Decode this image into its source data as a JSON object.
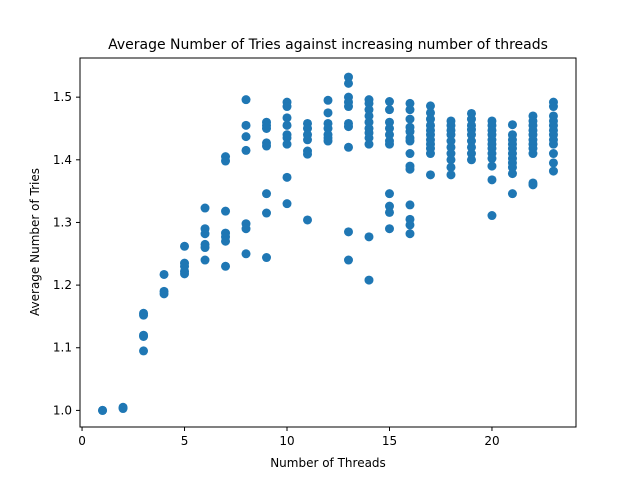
{
  "chart_data": {
    "type": "scatter",
    "title": "Average Number of Tries against increasing number of threads",
    "xlabel": "Number of Threads",
    "ylabel": "Average Number of Tries",
    "xlim": [
      -0.1,
      24.1
    ],
    "ylim": [
      0.9735,
      1.5625
    ],
    "x_ticks": [
      0,
      5,
      10,
      15,
      20
    ],
    "x_tick_labels": [
      "0",
      "5",
      "10",
      "15",
      "20"
    ],
    "y_ticks": [
      1.0,
      1.1,
      1.2,
      1.3,
      1.4,
      1.5
    ],
    "y_tick_labels": [
      "1.0",
      "1.1",
      "1.2",
      "1.3",
      "1.4",
      "1.5"
    ],
    "grid": false,
    "marker_color": "#1f77b4",
    "points": [
      [
        1,
        1.0
      ],
      [
        1,
        1.0
      ],
      [
        2,
        1.005
      ],
      [
        2,
        1.003
      ],
      [
        3,
        1.155
      ],
      [
        3,
        1.152
      ],
      [
        3,
        1.12
      ],
      [
        3,
        1.118
      ],
      [
        3,
        1.095
      ],
      [
        4,
        1.217
      ],
      [
        4,
        1.19
      ],
      [
        4,
        1.186
      ],
      [
        5,
        1.262
      ],
      [
        5,
        1.235
      ],
      [
        5,
        1.23
      ],
      [
        5,
        1.222
      ],
      [
        5,
        1.218
      ],
      [
        6,
        1.323
      ],
      [
        6,
        1.29
      ],
      [
        6,
        1.282
      ],
      [
        6,
        1.265
      ],
      [
        6,
        1.26
      ],
      [
        6,
        1.24
      ],
      [
        7,
        1.405
      ],
      [
        7,
        1.398
      ],
      [
        7,
        1.318
      ],
      [
        7,
        1.283
      ],
      [
        7,
        1.277
      ],
      [
        7,
        1.27
      ],
      [
        7,
        1.23
      ],
      [
        8,
        1.496
      ],
      [
        8,
        1.455
      ],
      [
        8,
        1.437
      ],
      [
        8,
        1.415
      ],
      [
        8,
        1.298
      ],
      [
        8,
        1.29
      ],
      [
        8,
        1.25
      ],
      [
        9,
        1.46
      ],
      [
        9,
        1.455
      ],
      [
        9,
        1.45
      ],
      [
        9,
        1.427
      ],
      [
        9,
        1.422
      ],
      [
        9,
        1.346
      ],
      [
        9,
        1.315
      ],
      [
        9,
        1.244
      ],
      [
        10,
        1.492
      ],
      [
        10,
        1.485
      ],
      [
        10,
        1.467
      ],
      [
        10,
        1.455
      ],
      [
        10,
        1.44
      ],
      [
        10,
        1.435
      ],
      [
        10,
        1.425
      ],
      [
        10,
        1.372
      ],
      [
        10,
        1.33
      ],
      [
        11,
        1.458
      ],
      [
        11,
        1.45
      ],
      [
        11,
        1.44
      ],
      [
        11,
        1.432
      ],
      [
        11,
        1.414
      ],
      [
        11,
        1.409
      ],
      [
        11,
        1.304
      ],
      [
        12,
        1.495
      ],
      [
        12,
        1.475
      ],
      [
        12,
        1.458
      ],
      [
        12,
        1.45
      ],
      [
        12,
        1.44
      ],
      [
        12,
        1.435
      ],
      [
        12,
        1.43
      ],
      [
        13,
        1.532
      ],
      [
        13,
        1.522
      ],
      [
        13,
        1.5
      ],
      [
        13,
        1.492
      ],
      [
        13,
        1.485
      ],
      [
        13,
        1.458
      ],
      [
        13,
        1.453
      ],
      [
        13,
        1.42
      ],
      [
        13,
        1.285
      ],
      [
        13,
        1.24
      ],
      [
        14,
        1.496
      ],
      [
        14,
        1.49
      ],
      [
        14,
        1.48
      ],
      [
        14,
        1.47
      ],
      [
        14,
        1.46
      ],
      [
        14,
        1.45
      ],
      [
        14,
        1.443
      ],
      [
        14,
        1.435
      ],
      [
        14,
        1.425
      ],
      [
        14,
        1.277
      ],
      [
        14,
        1.208
      ],
      [
        15,
        1.493
      ],
      [
        15,
        1.48
      ],
      [
        15,
        1.46
      ],
      [
        15,
        1.45
      ],
      [
        15,
        1.44
      ],
      [
        15,
        1.43
      ],
      [
        15,
        1.425
      ],
      [
        15,
        1.346
      ],
      [
        15,
        1.326
      ],
      [
        15,
        1.316
      ],
      [
        15,
        1.29
      ],
      [
        16,
        1.49
      ],
      [
        16,
        1.48
      ],
      [
        16,
        1.465
      ],
      [
        16,
        1.452
      ],
      [
        16,
        1.445
      ],
      [
        16,
        1.435
      ],
      [
        16,
        1.43
      ],
      [
        16,
        1.41
      ],
      [
        16,
        1.39
      ],
      [
        16,
        1.385
      ],
      [
        16,
        1.328
      ],
      [
        16,
        1.305
      ],
      [
        16,
        1.296
      ],
      [
        16,
        1.282
      ],
      [
        17,
        1.486
      ],
      [
        17,
        1.475
      ],
      [
        17,
        1.465
      ],
      [
        17,
        1.455
      ],
      [
        17,
        1.447
      ],
      [
        17,
        1.44
      ],
      [
        17,
        1.432
      ],
      [
        17,
        1.425
      ],
      [
        17,
        1.418
      ],
      [
        17,
        1.41
      ],
      [
        17,
        1.376
      ],
      [
        18,
        1.462
      ],
      [
        18,
        1.455
      ],
      [
        18,
        1.447
      ],
      [
        18,
        1.44
      ],
      [
        18,
        1.43
      ],
      [
        18,
        1.42
      ],
      [
        18,
        1.41
      ],
      [
        18,
        1.4
      ],
      [
        18,
        1.388
      ],
      [
        18,
        1.376
      ],
      [
        19,
        1.474
      ],
      [
        19,
        1.465
      ],
      [
        19,
        1.455
      ],
      [
        19,
        1.448
      ],
      [
        19,
        1.44
      ],
      [
        19,
        1.43
      ],
      [
        19,
        1.42
      ],
      [
        19,
        1.41
      ],
      [
        19,
        1.4
      ],
      [
        20,
        1.462
      ],
      [
        20,
        1.455
      ],
      [
        20,
        1.447
      ],
      [
        20,
        1.44
      ],
      [
        20,
        1.432
      ],
      [
        20,
        1.425
      ],
      [
        20,
        1.418
      ],
      [
        20,
        1.41
      ],
      [
        20,
        1.402
      ],
      [
        20,
        1.39
      ],
      [
        20,
        1.368
      ],
      [
        20,
        1.311
      ],
      [
        21,
        1.456
      ],
      [
        21,
        1.44
      ],
      [
        21,
        1.432
      ],
      [
        21,
        1.425
      ],
      [
        21,
        1.418
      ],
      [
        21,
        1.41
      ],
      [
        21,
        1.402
      ],
      [
        21,
        1.395
      ],
      [
        21,
        1.388
      ],
      [
        21,
        1.378
      ],
      [
        21,
        1.346
      ],
      [
        22,
        1.47
      ],
      [
        22,
        1.462
      ],
      [
        22,
        1.455
      ],
      [
        22,
        1.447
      ],
      [
        22,
        1.44
      ],
      [
        22,
        1.432
      ],
      [
        22,
        1.425
      ],
      [
        22,
        1.418
      ],
      [
        22,
        1.41
      ],
      [
        22,
        1.363
      ],
      [
        22,
        1.36
      ],
      [
        23,
        1.492
      ],
      [
        23,
        1.485
      ],
      [
        23,
        1.47
      ],
      [
        23,
        1.462
      ],
      [
        23,
        1.455
      ],
      [
        23,
        1.447
      ],
      [
        23,
        1.44
      ],
      [
        23,
        1.432
      ],
      [
        23,
        1.425
      ],
      [
        23,
        1.41
      ],
      [
        23,
        1.395
      ],
      [
        23,
        1.382
      ]
    ]
  }
}
